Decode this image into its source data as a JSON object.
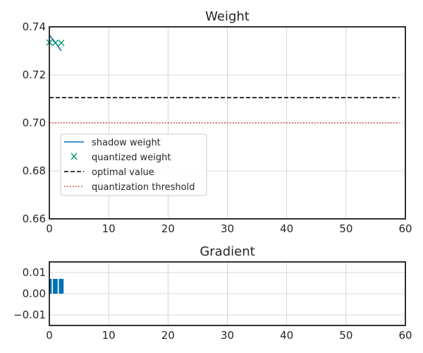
{
  "chart_data": [
    {
      "type": "line",
      "title": "Weight",
      "xlabel": "",
      "ylabel": "",
      "xlim": [
        0,
        60
      ],
      "ylim": [
        0.66,
        0.74
      ],
      "grid": true,
      "legend_placement": "center-left",
      "x_ticks": [
        "0",
        "10",
        "20",
        "30",
        "40",
        "50",
        "60"
      ],
      "y_ticks": [
        "0.66",
        "0.68",
        "0.70",
        "0.72",
        "0.74"
      ],
      "series": [
        {
          "name": "shadow weight",
          "style": "line",
          "color": "#0072b2",
          "x": [
            0,
            1,
            2
          ],
          "values": [
            0.7365,
            0.7335,
            0.73
          ]
        },
        {
          "name": "quantized weight",
          "style": "x-marker",
          "color": "#009e73",
          "x": [
            0,
            1,
            2
          ],
          "values": [
            0.7335,
            0.7333,
            0.7333
          ]
        },
        {
          "name": "optimal value",
          "style": "dashed",
          "color": "#000000",
          "x": [
            0,
            59
          ],
          "values": [
            0.7105,
            0.7105
          ]
        },
        {
          "name": "quantization threshold",
          "style": "dotted",
          "color": "#d62728",
          "x": [
            0,
            59
          ],
          "values": [
            0.7,
            0.7
          ]
        }
      ]
    },
    {
      "type": "bar",
      "title": "Gradient",
      "xlabel": "",
      "ylabel": "",
      "xlim": [
        0,
        60
      ],
      "ylim": [
        -0.015,
        0.015
      ],
      "grid": true,
      "x_ticks": [
        "0",
        "10",
        "20",
        "30",
        "40",
        "50",
        "60"
      ],
      "y_ticks": [
        "0.01",
        "0.00",
        "−0.01"
      ],
      "y_tick_values": [
        0.01,
        0.0,
        -0.01
      ],
      "bar_color": "#0072b2",
      "x": [
        0,
        1,
        2
      ],
      "values": [
        0.007,
        0.007,
        0.007
      ]
    }
  ]
}
